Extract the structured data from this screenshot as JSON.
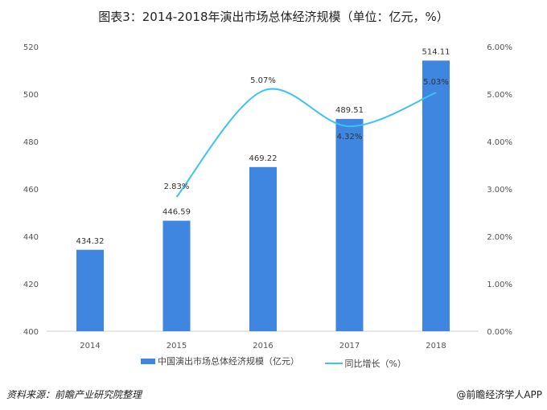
{
  "title": "图表3：2014-2018年演出市场总体经济规模（单位：亿元，%）",
  "source": "资料来源：前瞻产业研究院整理",
  "brand": "@前瞻经济学人APP",
  "chart_data": {
    "type": "bar",
    "categories": [
      "2014",
      "2015",
      "2016",
      "2017",
      "2018"
    ],
    "series": [
      {
        "name": "中国演出市场总体经济规模（亿元）",
        "type": "bar",
        "axis": "left",
        "values": [
          434.32,
          446.59,
          469.22,
          489.51,
          514.11
        ],
        "labels": [
          "434.32",
          "446.59",
          "469.22",
          "489.51",
          "514.11"
        ],
        "color": "#3f86e0"
      },
      {
        "name": "同比增长（%）",
        "type": "line",
        "axis": "right",
        "values": [
          null,
          2.83,
          5.07,
          4.32,
          5.03
        ],
        "labels": [
          "",
          "2.83%",
          "5.07%",
          "4.32%",
          "5.03%"
        ],
        "color": "#3cc3f2"
      }
    ],
    "ylim": [
      400,
      520
    ],
    "yticks": [
      "400",
      "420",
      "440",
      "460",
      "480",
      "500",
      "520"
    ],
    "y2lim": [
      0,
      6
    ],
    "y2ticks": [
      "0.00%",
      "1.00%",
      "2.00%",
      "3.00%",
      "4.00%",
      "5.00%",
      "6.00%"
    ],
    "legend": "bottom"
  }
}
